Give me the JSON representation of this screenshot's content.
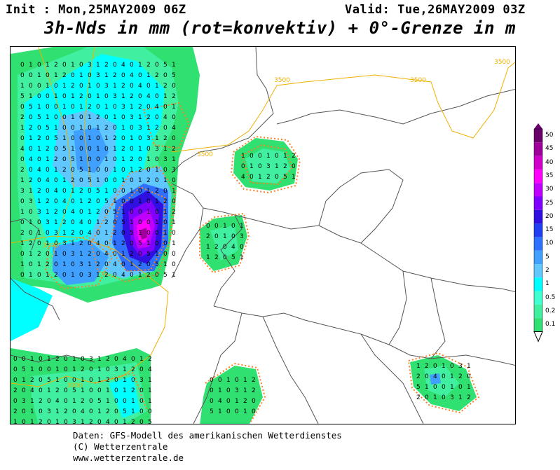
{
  "header": {
    "init": "Init : Mon,25MAY2009 06Z",
    "valid": "Valid: Tue,26MAY2009 03Z",
    "title": "3h-Nds in mm (rot=konvektiv) + 0°-Grenze in m"
  },
  "footer": {
    "line1": "Daten: GFS-Modell des amerikanischen Wetterdienstes",
    "line2": "(C) Wetterzentrale",
    "line3": "www.wetterzentrale.de"
  },
  "legend": {
    "labels": [
      "50",
      "45",
      "40",
      "35",
      "30",
      "25",
      "20",
      "15",
      "10",
      "5",
      "2",
      "1",
      "0.5",
      "0.2",
      "0.1"
    ],
    "colors": [
      "#6a006a",
      "#a0009a",
      "#d000c8",
      "#ff00ff",
      "#c000ff",
      "#8000ff",
      "#3010e0",
      "#2040f0",
      "#3070ff",
      "#40a0ff",
      "#60c8ff",
      "#00ffff",
      "#40ffd0",
      "#40f0a0",
      "#30e070"
    ]
  },
  "contours": {
    "labels": [
      "3500",
      "3500",
      "3500",
      "3500",
      "3000",
      "3000"
    ]
  },
  "map": {
    "cells": [
      {
        "v": "0",
        "c": "#30e070"
      },
      {
        "v": "1",
        "c": "#00ffff"
      },
      {
        "v": "2",
        "c": "#60c8ff"
      },
      {
        "v": "3",
        "c": "#40a0ff"
      },
      {
        "v": "4",
        "c": "#40a0ff"
      },
      {
        "v": "5",
        "c": "#3070ff"
      },
      {
        "v": "10",
        "c": "#2040f0"
      },
      {
        "v": "20",
        "c": "#8000ff"
      },
      {
        "v": "35",
        "c": "#d000c8"
      },
      {
        "v": "42",
        "c": "#a0009a"
      }
    ]
  },
  "colors": {
    "convective": "#ff7f20",
    "freezing_level": "#f0b000",
    "border": "#555555"
  }
}
